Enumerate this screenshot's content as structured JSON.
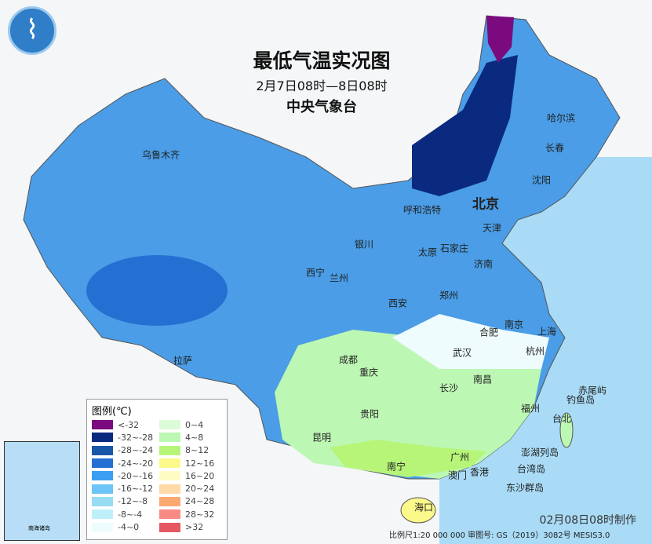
{
  "title": "最低气温实况图",
  "period": "2月7日08时—8日08时",
  "agency": "中央气象台",
  "logo": "中央气象台 logo",
  "cities": [
    "乌鲁木齐",
    "哈尔滨",
    "长春",
    "沈阳",
    "北京",
    "天津",
    "呼和浩特",
    "银川",
    "太原",
    "石家庄",
    "济南",
    "西宁",
    "兰州",
    "郑州",
    "西安",
    "南京",
    "合肥",
    "上海",
    "武汉",
    "杭州",
    "成都",
    "重庆",
    "拉萨",
    "南昌",
    "长沙",
    "福州",
    "贵阳",
    "台北",
    "昆明",
    "南宁",
    "广州",
    "澳门",
    "香港",
    "海口",
    "赤尾屿",
    "钓鱼岛",
    "澎湖列岛",
    "台湾岛",
    "东沙群岛"
  ],
  "legend": {
    "title": "图例(℃)",
    "items": [
      {
        "label": "<-32",
        "color": "#7b0a7e"
      },
      {
        "label": "-32~-28",
        "color": "#0a2a7f"
      },
      {
        "label": "-28~-24",
        "color": "#1a56a8"
      },
      {
        "label": "-24~-20",
        "color": "#2470d2"
      },
      {
        "label": "-20~-16",
        "color": "#3b9ef0"
      },
      {
        "label": "-16~-12",
        "color": "#6cc4f7"
      },
      {
        "label": "-12~-8",
        "color": "#96dcf2"
      },
      {
        "label": "-8~-4",
        "color": "#bff0f9"
      },
      {
        "label": "-4~0",
        "color": "#effcfd"
      },
      {
        "label": "0~4",
        "color": "#dcfbd8"
      },
      {
        "label": "4~8",
        "color": "#bdf7b4"
      },
      {
        "label": "8~12",
        "color": "#b7f579"
      },
      {
        "label": "12~16",
        "color": "#fbf98a"
      },
      {
        "label": "16~20",
        "color": "#fffbc5"
      },
      {
        "label": "20~24",
        "color": "#fddaa8"
      },
      {
        "label": "24~28",
        "color": "#fca871"
      },
      {
        "label": "28~32",
        "color": "#f88a86"
      },
      {
        "label": ">32",
        "color": "#e55a62"
      }
    ]
  },
  "made": "02月08日08时制作",
  "scale": "比例尺1:20 000 000   审图号: GS（2019）3082号 MESIS3.0",
  "inset_label": "南海诸岛"
}
